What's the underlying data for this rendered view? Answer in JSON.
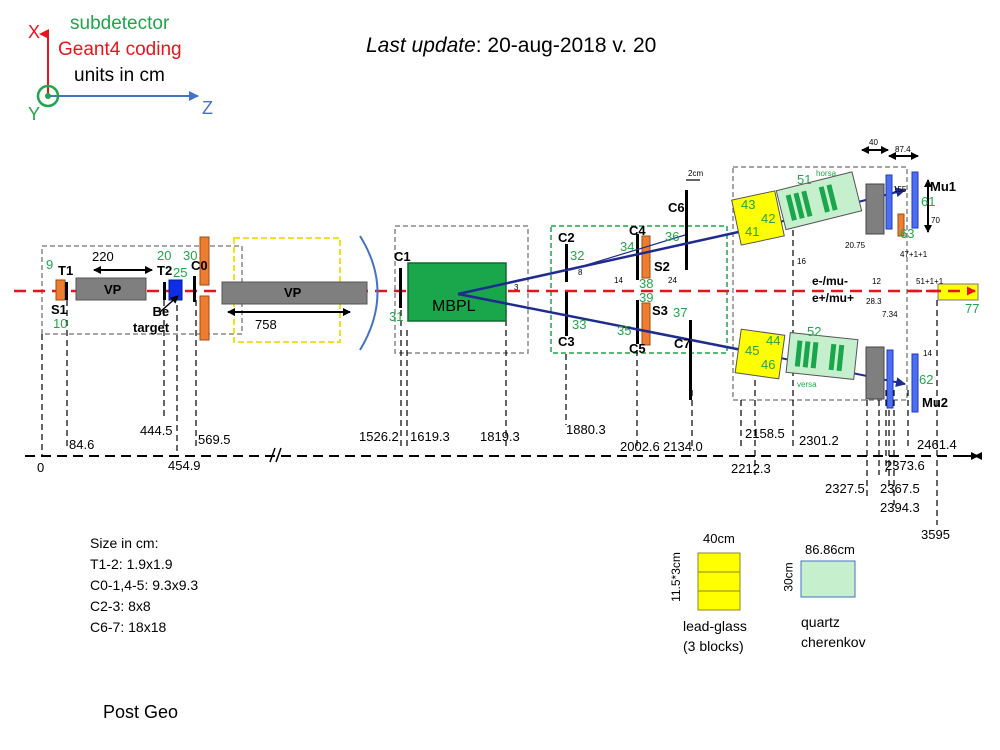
{
  "legend": {
    "subdetector": "subdetector",
    "geant4": "Geant4 coding",
    "units": "units in cm",
    "axis_x": "X",
    "axis_y": "Y",
    "axis_z": "Z",
    "colors": {
      "subdetector": "#22a54a",
      "geant4": "#e8141b",
      "axis_x": "#e8141b",
      "axis_z": "#4472c4",
      "axis_y_ring": "#22a54a"
    }
  },
  "update": {
    "prefix": "Last update",
    "text": ": 20-aug-2018 v. 20"
  },
  "detectors": {
    "T1": "T1",
    "T2": "T2",
    "S1": "S1",
    "C0": "C0",
    "VP": "VP",
    "be_target": "Be\ntarget",
    "C1": "C1",
    "MBPL": "MBPL",
    "C2": "C2",
    "C3": "C3",
    "C4": "C4",
    "C5": "C5",
    "C6": "C6",
    "C7": "C7",
    "S2": "S2",
    "S3": "S3",
    "Mu1": "Mu1",
    "Mu2": "Mu2",
    "charge_top": "e-/mu-",
    "charge_bot": "e+/mu+",
    "horsa": "horsa",
    "versa": "versa"
  },
  "codes": [
    "9",
    "10",
    "20",
    "25",
    "30",
    "31",
    "32",
    "33",
    "34",
    "35",
    "36",
    "37",
    "38",
    "39",
    "41",
    "42",
    "43",
    "44",
    "45",
    "46",
    "51",
    "52",
    "61",
    "62",
    "63",
    "77"
  ],
  "dimensions": [
    "220",
    "758",
    "3",
    "8",
    "14",
    "24",
    "2cm",
    "16",
    "20.75",
    "12",
    "28.3",
    "40",
    "87.4",
    "155",
    "70",
    "47+1+1",
    "51+1+1",
    "14",
    "7.34"
  ],
  "positions": [
    "0",
    "84.6",
    "444.5",
    "454.9",
    "569.5",
    "1526.2",
    "1619.3",
    "1819.3",
    "1880.3",
    "2002.6",
    "2134.0",
    "2158.5",
    "2212.3",
    "2301.2",
    "2327.5",
    "2373.6",
    "2367.5",
    "2394.3",
    "2461.4",
    "3595"
  ],
  "sizes": {
    "title": "Size in cm:",
    "items": [
      "T1-2: 1.9x1.9",
      "C0-1,4-5: 9.3x9.3",
      "C2-3: 8x8",
      "C6-7: 18x18"
    ]
  },
  "leadglass": {
    "width": "40cm",
    "height": "11.5*3cm",
    "label1": "lead-glass",
    "label2": "(3 blocks)"
  },
  "cherenkov": {
    "width": "86.86cm",
    "height": "30cm",
    "label1": "quartz",
    "label2": "cherenkov"
  },
  "footer": "Post Geo"
}
